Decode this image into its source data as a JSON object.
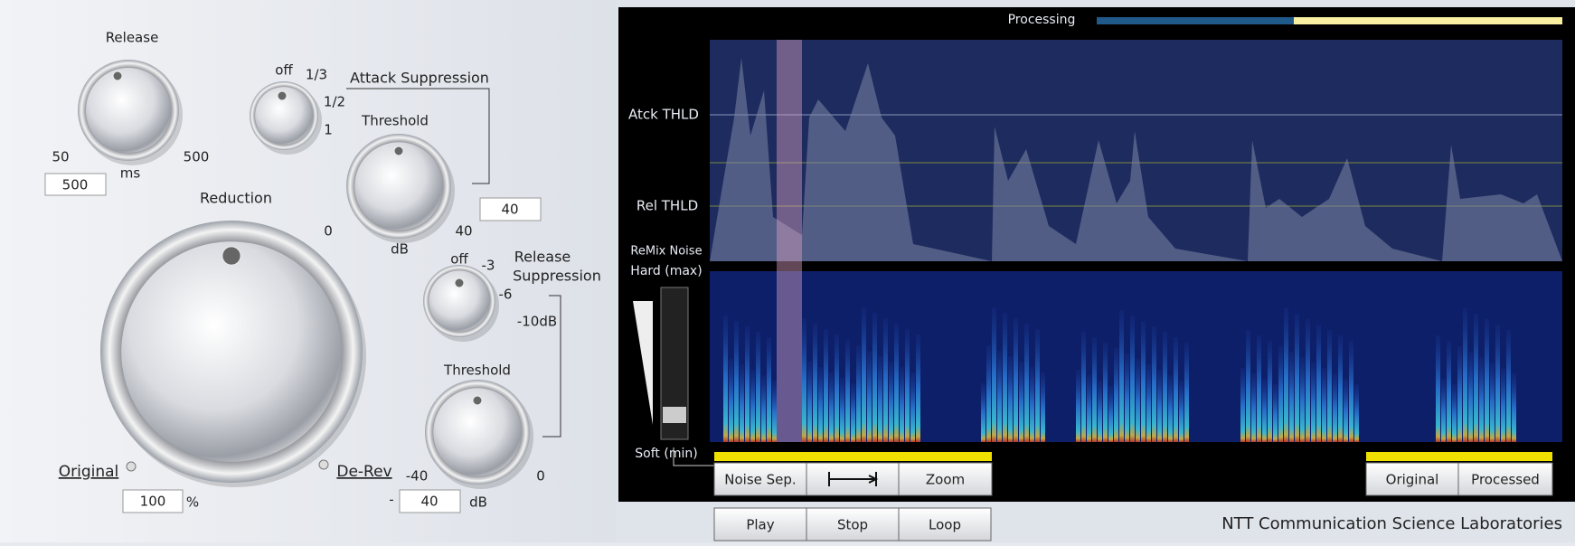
{
  "left_panel": {
    "release": {
      "label": "Release",
      "min": "50",
      "max": "500",
      "unit": "ms",
      "value": "500"
    },
    "attack_suppression": {
      "title": "Attack Suppression",
      "steps": [
        "off",
        "1/3",
        "1/2",
        "1"
      ],
      "threshold_label": "Threshold",
      "min": "0",
      "max": "40",
      "unit": "dB",
      "value": "40"
    },
    "reduction": {
      "label": "Reduction",
      "left": "Original",
      "right": "De-Rev",
      "value": "100",
      "unit": "%"
    },
    "release_suppression": {
      "title_lines": [
        "Release",
        "Suppression"
      ],
      "steps": [
        "off",
        "-3",
        "-6",
        "-10dB"
      ],
      "threshold_label": "Threshold",
      "min": "-40",
      "max": "0",
      "sign": "-",
      "value": "40",
      "unit": "dB"
    }
  },
  "right_panel": {
    "processing_label": "Processing",
    "labels": [
      "Atck THLD",
      "Rel THLD",
      "ReMix Noise",
      "Hard (max)",
      "Soft (min)"
    ],
    "buttons": {
      "view": [
        "Noise Sep.",
        "Zoom"
      ],
      "compare": [
        "Original",
        "Processed"
      ],
      "transport": [
        "Play",
        "Stop",
        "Loop"
      ]
    },
    "footer": "NTT Communication Science Laboratories"
  }
}
